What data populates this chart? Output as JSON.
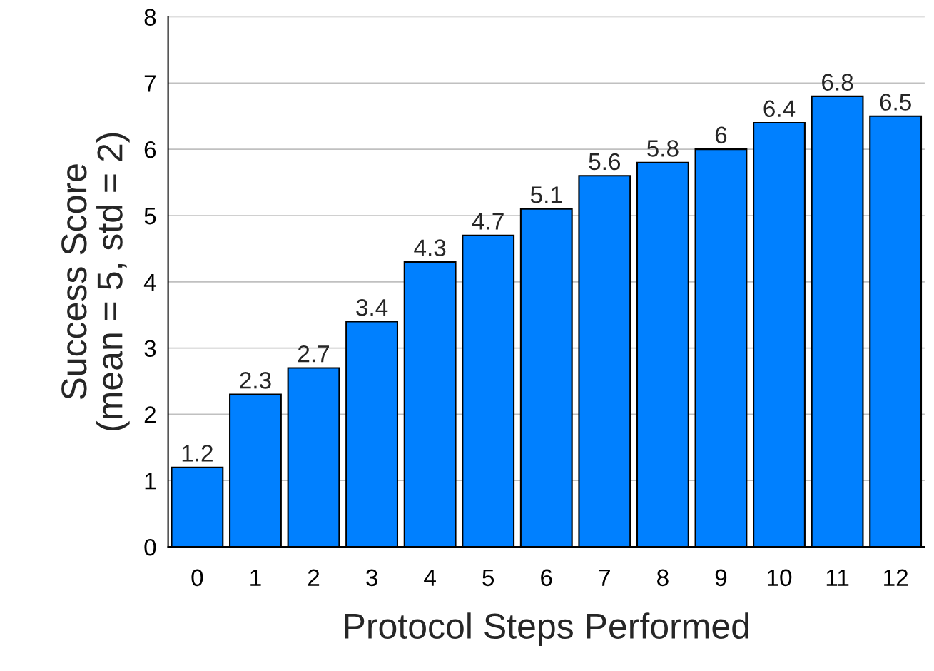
{
  "chart_data": {
    "type": "bar",
    "categories": [
      "0",
      "1",
      "2",
      "3",
      "4",
      "5",
      "6",
      "7",
      "8",
      "9",
      "10",
      "11",
      "12"
    ],
    "values": [
      1.2,
      2.3,
      2.7,
      3.4,
      4.3,
      4.7,
      5.1,
      5.6,
      5.8,
      6,
      6.4,
      6.8,
      6.5
    ],
    "color": "#0080ff",
    "xlabel": "Protocol Steps Performed",
    "ylabel": "Success Score\n(mean = 5, std = 2)",
    "ylim": [
      0,
      8
    ],
    "yticks": [
      0,
      1,
      2,
      3,
      4,
      5,
      6,
      7,
      8
    ],
    "grid": "y",
    "data_labels": true
  }
}
